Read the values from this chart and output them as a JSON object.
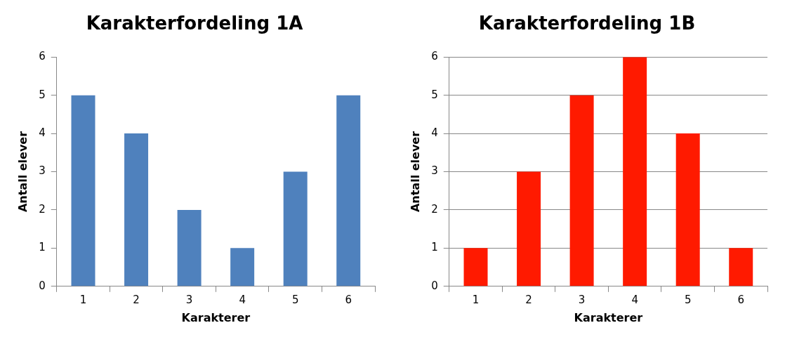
{
  "chart_data": [
    {
      "type": "bar",
      "title": "Karakterfordeling 1A",
      "xlabel": "Karakterer",
      "ylabel": "Antall elever",
      "categories": [
        "1",
        "2",
        "3",
        "4",
        "5",
        "6"
      ],
      "series": [
        {
          "color": "#4f81bd",
          "values": [
            5,
            4,
            2,
            1,
            3,
            5
          ]
        }
      ],
      "ylim": [
        0,
        6
      ],
      "yticks": [
        0,
        1,
        2,
        3,
        4,
        5,
        6
      ],
      "grid": false,
      "legend": false
    },
    {
      "type": "bar",
      "title": "Karakterfordeling 1B",
      "xlabel": "Karakterer",
      "ylabel": "Antall elever",
      "categories": [
        "1",
        "2",
        "3",
        "4",
        "5",
        "6"
      ],
      "series": [
        {
          "color": "#ff1a00",
          "values": [
            1,
            3,
            5,
            6,
            4,
            1
          ]
        }
      ],
      "ylim": [
        0,
        6
      ],
      "yticks": [
        0,
        1,
        2,
        3,
        4,
        5,
        6
      ],
      "grid": "y",
      "legend": false
    }
  ]
}
